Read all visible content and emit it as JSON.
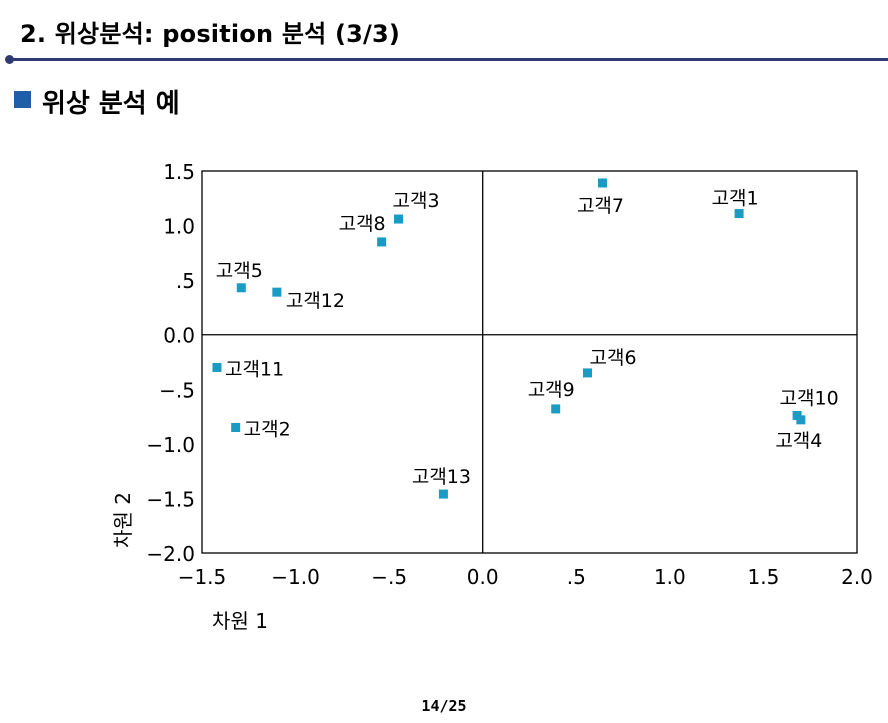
{
  "slide": {
    "title": "2. 위상분석: position 분석 (3/3)",
    "section": "위상 분석 예",
    "page": "14/25"
  },
  "chart_data": {
    "type": "scatter",
    "xlabel": "차원 1",
    "ylabel": "차원 2",
    "xlim": [
      -1.5,
      2.0
    ],
    "ylim": [
      -2.0,
      1.5
    ],
    "xticks": [
      "−1.5",
      "−1.0",
      "−.5",
      "0.0",
      ".5",
      "1.0",
      "1.5",
      "2.0"
    ],
    "yticks": [
      "1.5",
      "1.0",
      ".5",
      "0.0",
      "−.5",
      "−1.0",
      "−1.5",
      "−2.0"
    ],
    "marker_color": "#1a9bc3",
    "points": [
      {
        "label": "고객1",
        "x": 1.37,
        "y": 1.11
      },
      {
        "label": "고객2",
        "x": -1.32,
        "y": -0.85
      },
      {
        "label": "고객3",
        "x": -0.45,
        "y": 1.06
      },
      {
        "label": "고객4",
        "x": 1.7,
        "y": -0.78
      },
      {
        "label": "고객5",
        "x": -1.29,
        "y": 0.43
      },
      {
        "label": "고객6",
        "x": 0.56,
        "y": -0.35
      },
      {
        "label": "고객7",
        "x": 0.64,
        "y": 1.39
      },
      {
        "label": "고객8",
        "x": -0.54,
        "y": 0.85
      },
      {
        "label": "고객9",
        "x": 0.39,
        "y": -0.68
      },
      {
        "label": "고객10",
        "x": 1.68,
        "y": -0.74
      },
      {
        "label": "고객11",
        "x": -1.42,
        "y": -0.3
      },
      {
        "label": "고객12",
        "x": -1.1,
        "y": 0.39
      },
      {
        "label": "고객13",
        "x": -0.21,
        "y": -1.46
      }
    ]
  }
}
